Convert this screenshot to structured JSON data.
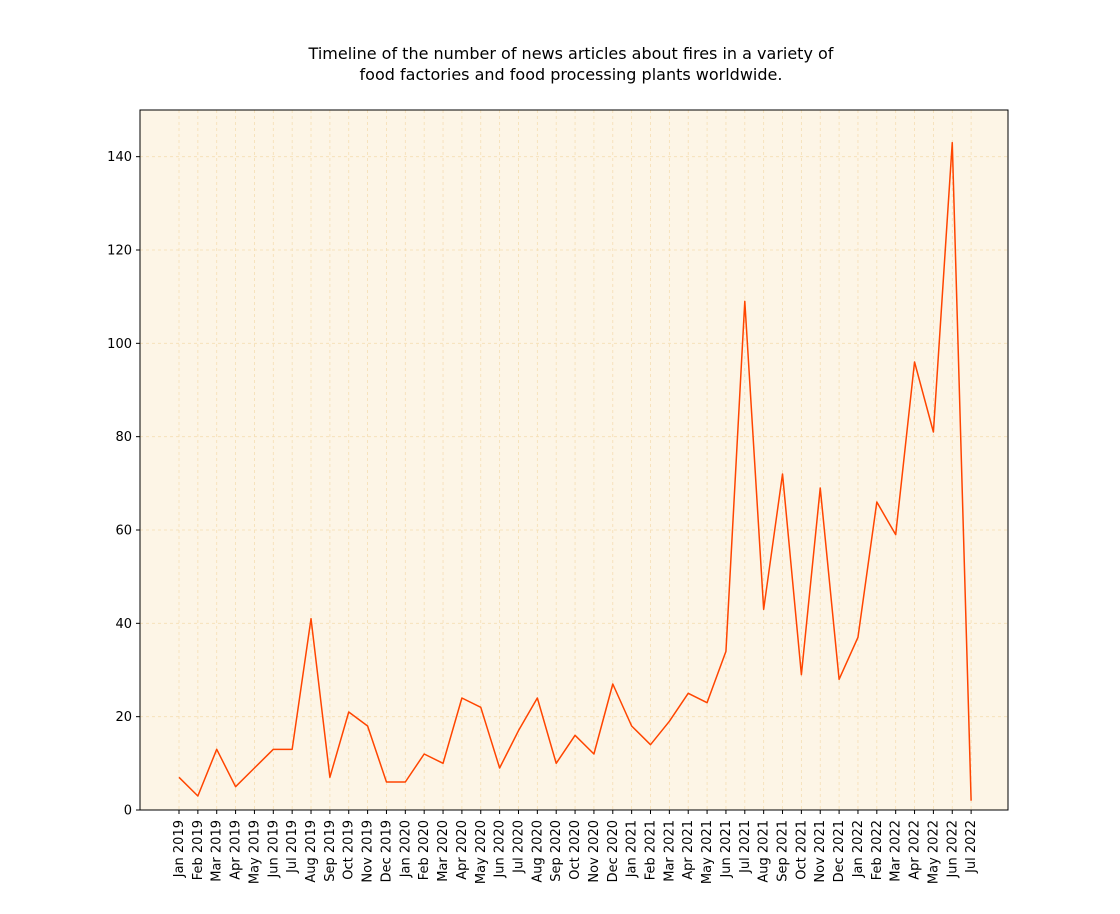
{
  "chart_data": {
    "type": "line",
    "title": [
      "Timeline of the number of news articles about fires in a variety of",
      "food factories and food processing plants worldwide."
    ],
    "xlabel": "",
    "ylabel": "",
    "categories": [
      "Jan 2019",
      "Feb 2019",
      "Mar 2019",
      "Apr 2019",
      "May 2019",
      "Jun 2019",
      "Jul 2019",
      "Aug 2019",
      "Sep 2019",
      "Oct 2019",
      "Nov 2019",
      "Dec 2019",
      "Jan 2020",
      "Feb 2020",
      "Mar 2020",
      "Apr 2020",
      "May 2020",
      "Jun 2020",
      "Jul 2020",
      "Aug 2020",
      "Sep 2020",
      "Oct 2020",
      "Nov 2020",
      "Dec 2020",
      "Jan 2021",
      "Feb 2021",
      "Mar 2021",
      "Apr 2021",
      "May 2021",
      "Jun 2021",
      "Jul 2021",
      "Aug 2021",
      "Sep 2021",
      "Oct 2021",
      "Nov 2021",
      "Dec 2021",
      "Jan 2022",
      "Feb 2022",
      "Mar 2022",
      "Apr 2022",
      "May 2022",
      "Jun 2022",
      "Jul 2022"
    ],
    "series": [
      {
        "values": [
          7,
          3,
          13,
          5,
          9,
          13,
          13,
          41,
          7,
          21,
          18,
          6,
          6,
          12,
          10,
          24,
          22,
          9,
          17,
          24,
          10,
          16,
          12,
          27,
          18,
          14,
          19,
          25,
          23,
          34,
          109,
          43,
          72,
          29,
          69,
          28,
          37,
          66,
          59,
          96,
          81,
          143,
          2
        ],
        "color": "#ff4500"
      }
    ],
    "ylim": [
      0,
      150
    ],
    "yticks": [
      0,
      20,
      40,
      60,
      80,
      100,
      120,
      140
    ],
    "grid": true,
    "legend": "none",
    "colors": {
      "plot_background": "#fdf5e6",
      "grid": "#f5deb3",
      "line": "#ff4500",
      "axes": "#000000"
    }
  }
}
